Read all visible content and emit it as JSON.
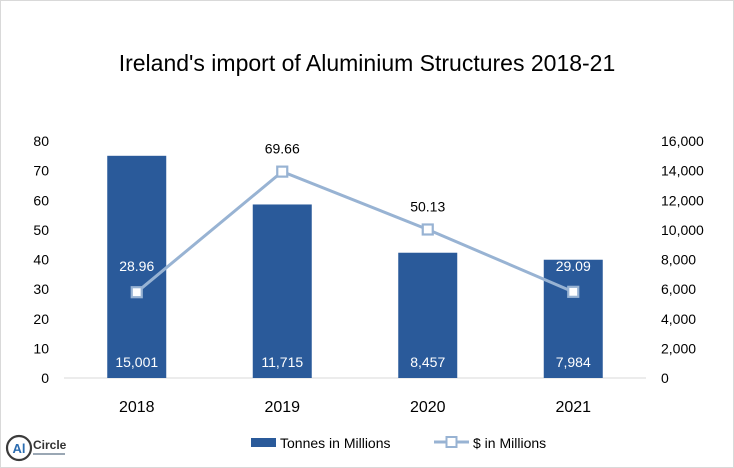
{
  "chart_data": {
    "type": "bar",
    "title": "Ireland's import of Aluminium Structures 2018-21",
    "categories": [
      "2018",
      "2019",
      "2020",
      "2021"
    ],
    "series": [
      {
        "name": "Tonnes in Millions",
        "chart": "bar",
        "axis": "secondary",
        "values": [
          15001,
          11715,
          8457,
          7984
        ],
        "labels": [
          "15,001",
          "11,715",
          "8,457",
          "7,984"
        ],
        "color": "#2a5a9a"
      },
      {
        "name": "$ in Millions",
        "chart": "line",
        "axis": "primary",
        "values": [
          28.96,
          69.66,
          50.13,
          29.09
        ],
        "labels": [
          "28.96",
          "69.66",
          "50.13",
          "29.09"
        ],
        "color": "#98b3d3"
      }
    ],
    "y_left": {
      "min": 0,
      "max": 80,
      "ticks": [
        "0",
        "10",
        "20",
        "30",
        "40",
        "50",
        "60",
        "70",
        "80"
      ]
    },
    "y_right": {
      "min": 0,
      "max": 16000,
      "ticks": [
        "0",
        "2,000",
        "4,000",
        "6,000",
        "8,000",
        "10,000",
        "12,000",
        "14,000",
        "16,000"
      ]
    },
    "grid": false,
    "legend": "bottom"
  },
  "logo": {
    "text": "AlCircle"
  }
}
